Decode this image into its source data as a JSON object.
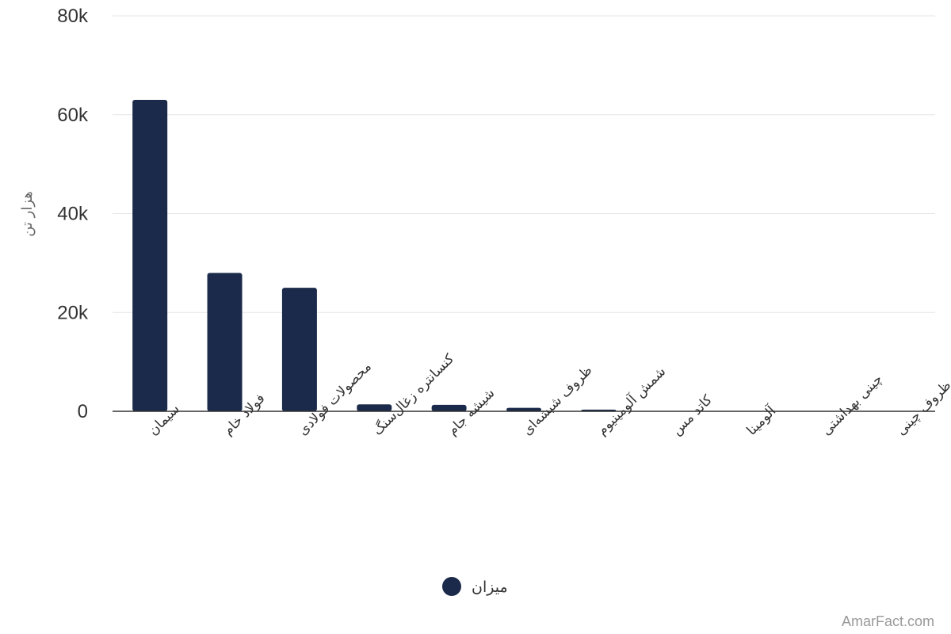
{
  "chart_data": {
    "type": "bar",
    "categories": [
      "سیمان",
      "فولاد خام",
      "محصولات فولادی",
      "کنسانتره زغال‌سنگ",
      "شیشه جام",
      "ظروف شیشه‌ای",
      "شمش آلومینیوم",
      "کاتد مس",
      "آلومینا",
      "چینی بهداشتی",
      "ظروف چینی"
    ],
    "series": [
      {
        "name": "میزان",
        "values": [
          63000,
          28000,
          25000,
          1400,
          1300,
          700,
          350,
          80,
          40,
          30,
          20
        ]
      }
    ],
    "ylabel": "هزار تن",
    "ylim": [
      0,
      80000
    ],
    "yticks": [
      0,
      20000,
      40000,
      60000,
      80000
    ],
    "ytick_labels": [
      "0",
      "20k",
      "40k",
      "60k",
      "80k"
    ],
    "grid": true,
    "legend": "bottom-center",
    "color": "#1b2a4a"
  },
  "credit": "AmarFact.com"
}
